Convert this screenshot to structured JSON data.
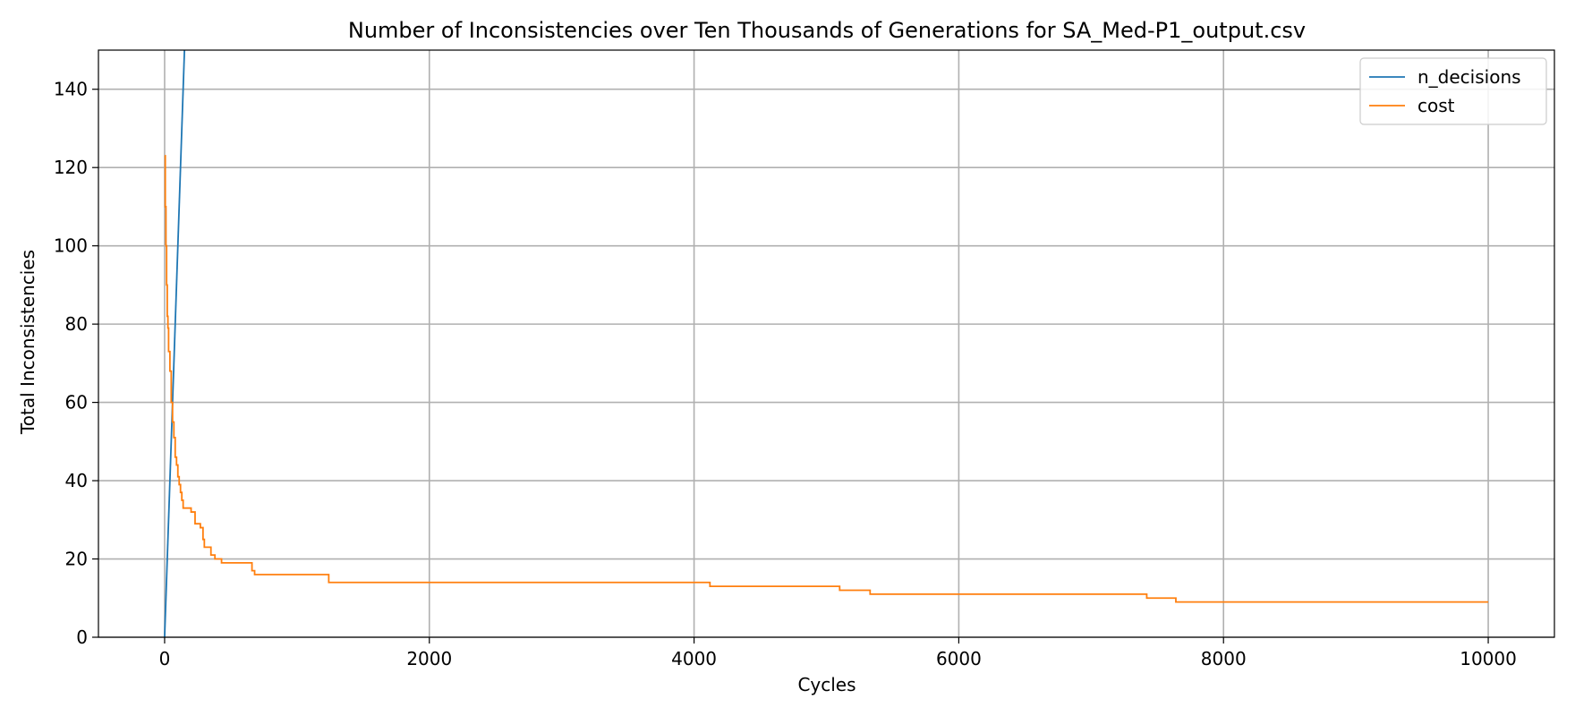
{
  "chart_data": {
    "type": "line",
    "title": "Number of Inconsistencies over Ten Thousands of Generations for SA_Med-P1_output.csv",
    "xlabel": "Cycles",
    "ylabel": "Total Inconsistencies",
    "xlim": [
      -500,
      10500
    ],
    "ylim": [
      0,
      150
    ],
    "xticks": [
      0,
      2000,
      4000,
      6000,
      8000,
      10000
    ],
    "yticks": [
      0,
      20,
      40,
      60,
      80,
      100,
      120,
      140
    ],
    "grid": true,
    "legend_position": "top-right",
    "series": [
      {
        "name": "n_decisions",
        "color": "#1f77b4",
        "x": [
          0,
          150
        ],
        "y": [
          0,
          150
        ]
      },
      {
        "name": "cost",
        "color": "#ff7f0e",
        "step": true,
        "x": [
          0,
          5,
          10,
          15,
          20,
          25,
          30,
          40,
          50,
          60,
          70,
          80,
          90,
          100,
          110,
          120,
          130,
          140,
          150,
          165,
          180,
          200,
          230,
          240,
          270,
          290,
          300,
          320,
          350,
          380,
          400,
          430,
          650,
          660,
          680,
          1240,
          4120,
          5100,
          5330,
          7420,
          7640,
          10000
        ],
        "y": [
          123,
          110,
          100,
          90,
          82,
          79,
          73,
          68,
          60,
          55,
          51,
          46,
          44,
          41,
          39,
          37,
          35,
          33,
          33,
          33,
          33,
          32,
          29,
          29,
          28,
          25,
          23,
          23,
          21,
          20,
          20,
          19,
          19,
          17,
          16,
          14,
          13,
          12,
          11,
          10,
          9,
          9
        ]
      }
    ]
  }
}
